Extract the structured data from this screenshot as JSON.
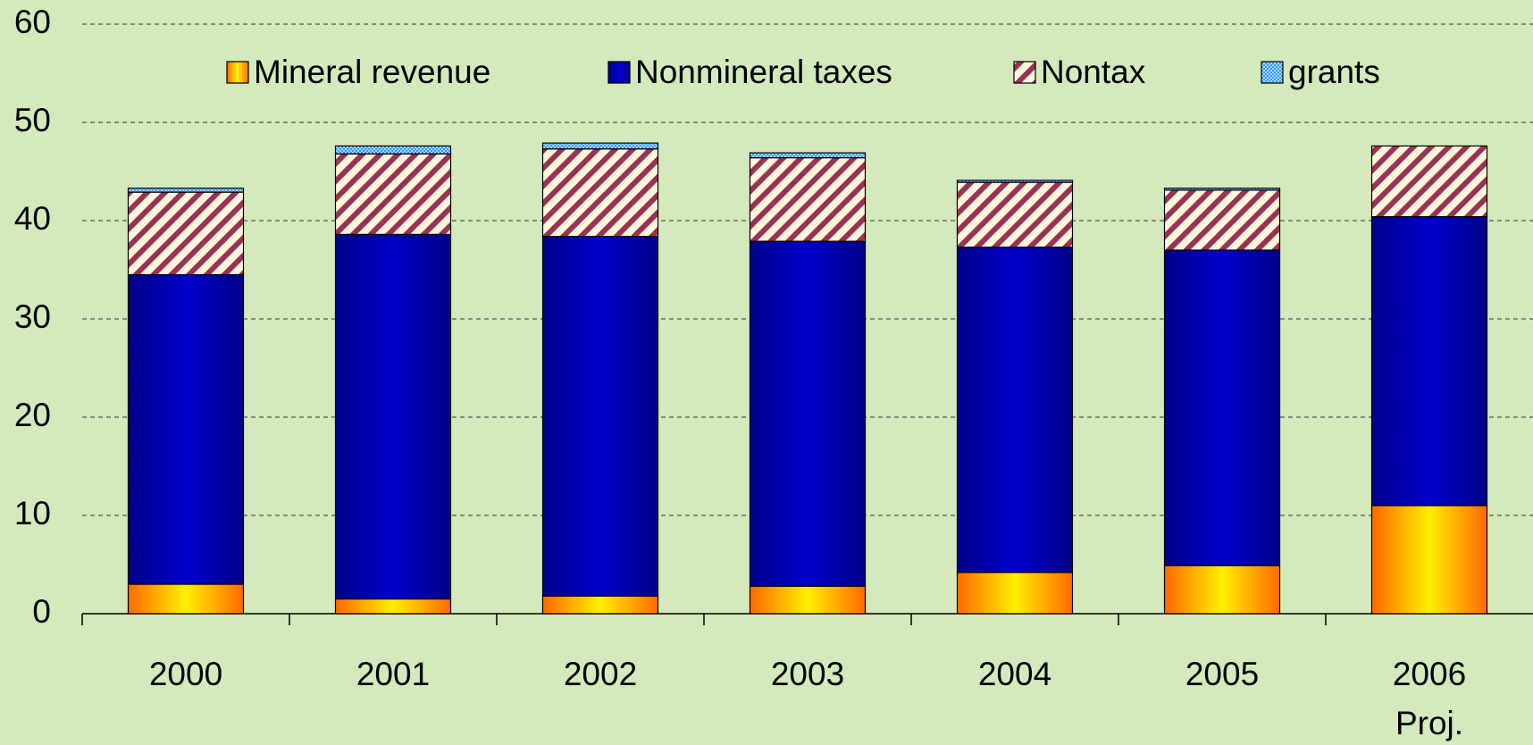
{
  "chart_data": {
    "type": "stacked_bar",
    "categories": [
      "2000",
      "2001",
      "2002",
      "2003",
      "2004",
      "2005",
      "2006"
    ],
    "annotation": "Proj.",
    "series": [
      {
        "name": "Mineral revenue",
        "color": "#ffee00",
        "values": [
          3.0,
          1.5,
          1.8,
          2.8,
          4.2,
          4.9,
          11.0
        ]
      },
      {
        "name": "Nonmineral taxes",
        "color": "#0000cc",
        "values": [
          31.5,
          37.1,
          36.6,
          35.1,
          33.1,
          32.1,
          29.4
        ]
      },
      {
        "name": "Nontax",
        "color": "#993355",
        "values": [
          8.4,
          8.2,
          8.9,
          8.5,
          6.6,
          6.1,
          7.2
        ]
      },
      {
        "name": "grants",
        "color": "#3399ff",
        "values": [
          0.4,
          0.8,
          0.6,
          0.5,
          0.2,
          0.2,
          0
        ]
      }
    ],
    "ylim": [
      0,
      60
    ],
    "yticks": [
      0,
      10,
      20,
      30,
      40,
      50,
      60
    ],
    "grid": true,
    "legend": "top"
  }
}
